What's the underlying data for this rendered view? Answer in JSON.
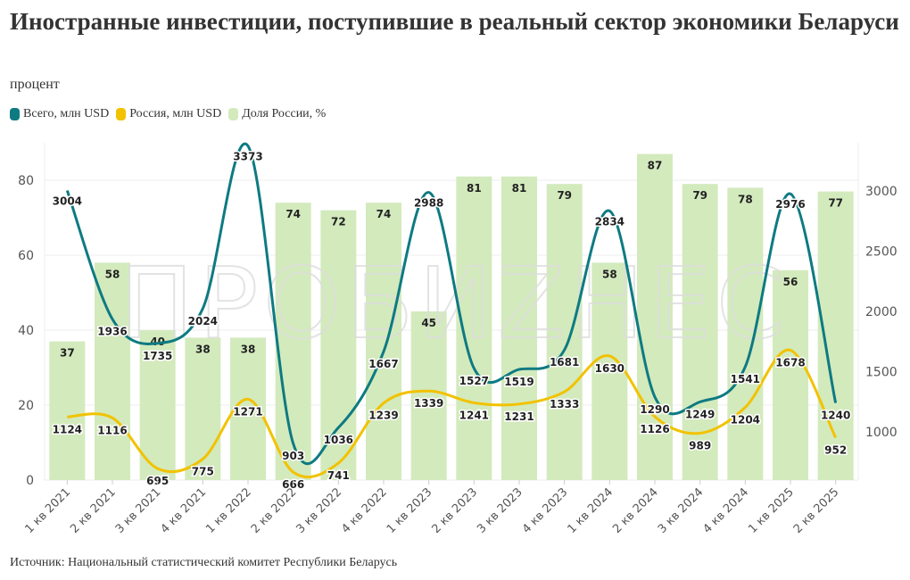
{
  "title": "Иностранные инвестиции, поступившие в реальный сектор экономики Беларуси",
  "subtitle": "процент",
  "source": "Источник: Национальный статистический комитет Республики Беларусь",
  "watermark": "ПРОБИZНЕС",
  "chart_data": {
    "type": "bar+line",
    "categories": [
      "1 кв 2021",
      "2 кв 2021",
      "3 кв 2021",
      "4 кв 2021",
      "1 кв 2022",
      "2 кв 2022",
      "3 кв 2022",
      "4 кв 2022",
      "1 кв 2023",
      "2 кв 2023",
      "3 кв 2023",
      "4 кв 2023",
      "1 кв 2024",
      "2 кв 2024",
      "3 кв 2024",
      "4 кв 2024",
      "1 кв 2025",
      "2 кв 2025"
    ],
    "legend_placement": "top-left",
    "grid": true,
    "left_axis": {
      "ticks": [
        0,
        20,
        40,
        60,
        80
      ],
      "range": [
        0,
        90
      ]
    },
    "right_axis": {
      "ticks": [
        1000,
        1500,
        2000,
        2500,
        3000
      ],
      "range": [
        600,
        3400
      ]
    },
    "series": [
      {
        "name": "Всего, млн USD",
        "type": "line",
        "axis": "right",
        "color": "#0e7a82",
        "values": [
          3004,
          1936,
          1735,
          2024,
          3373,
          903,
          1036,
          1667,
          2988,
          1527,
          1519,
          1681,
          2834,
          1290,
          1249,
          1541,
          2976,
          1240
        ]
      },
      {
        "name": "Россия, млн USD",
        "type": "line",
        "axis": "right",
        "color": "#f2c200",
        "values": [
          1124,
          1116,
          695,
          775,
          1271,
          666,
          741,
          1239,
          1339,
          1241,
          1231,
          1333,
          1630,
          1126,
          989,
          1204,
          1678,
          952
        ]
      },
      {
        "name": "Доля России, %",
        "type": "bar",
        "axis": "left",
        "color": "#d3eabd",
        "values": [
          37,
          58,
          40,
          38,
          38,
          74,
          72,
          74,
          45,
          81,
          81,
          79,
          58,
          87,
          79,
          78,
          56,
          77
        ]
      }
    ]
  }
}
